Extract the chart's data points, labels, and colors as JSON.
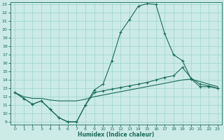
{
  "xlabel": "Humidex (Indice chaleur)",
  "x": [
    0,
    1,
    2,
    3,
    4,
    5,
    6,
    7,
    8,
    9,
    10,
    11,
    12,
    13,
    14,
    15,
    16,
    17,
    18,
    19,
    20,
    21,
    22,
    23
  ],
  "curve1": [
    12.5,
    11.8,
    11.1,
    11.5,
    10.5,
    9.5,
    9.0,
    9.0,
    11.0,
    12.8,
    13.5,
    16.3,
    19.7,
    21.2,
    22.8,
    23.1,
    23.0,
    19.5,
    17.0,
    16.3,
    14.1,
    13.2,
    13.2,
    13.0
  ],
  "curve2": [
    12.5,
    11.8,
    11.1,
    11.5,
    10.5,
    9.5,
    9.0,
    9.0,
    11.0,
    12.5,
    12.7,
    12.9,
    13.1,
    13.3,
    13.5,
    13.7,
    14.0,
    14.3,
    14.5,
    15.5,
    14.2,
    13.5,
    13.3,
    13.0
  ],
  "curve3": [
    12.5,
    12.0,
    11.8,
    11.8,
    11.6,
    11.5,
    11.5,
    11.5,
    11.7,
    12.0,
    12.2,
    12.4,
    12.6,
    12.8,
    13.0,
    13.2,
    13.4,
    13.6,
    13.8,
    14.0,
    14.1,
    13.8,
    13.5,
    13.2
  ],
  "color": "#1a6b5a",
  "bg_color": "#cceae6",
  "grid_color": "#99d5ce",
  "ylim_min": 9,
  "ylim_max": 23,
  "xlim_min": 0,
  "xlim_max": 23,
  "yticks": [
    9,
    10,
    11,
    12,
    13,
    14,
    15,
    16,
    17,
    18,
    19,
    20,
    21,
    22,
    23
  ],
  "xticks": [
    0,
    1,
    2,
    3,
    4,
    5,
    6,
    7,
    8,
    9,
    10,
    11,
    12,
    13,
    14,
    15,
    16,
    17,
    18,
    19,
    20,
    21,
    22,
    23
  ],
  "xlabel_fontsize": 5.5,
  "tick_fontsize": 4.5,
  "linewidth": 0.8,
  "markersize": 3.5
}
